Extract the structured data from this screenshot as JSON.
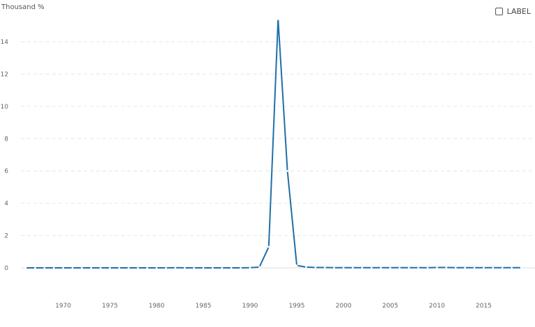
{
  "controls": {
    "label_toggle": "LABEL"
  },
  "chart_data": {
    "type": "line",
    "title": "",
    "xlabel": "",
    "ylabel": "Thousand %",
    "xlim": [
      1966,
      2019
    ],
    "ylim": [
      -1.5,
      15.6
    ],
    "y_ticks": [
      0,
      2,
      4,
      6,
      8,
      10,
      12,
      14
    ],
    "x_ticks": [
      1970,
      1975,
      1980,
      1985,
      1990,
      1995,
      2000,
      2005,
      2010,
      2015
    ],
    "grid": true,
    "color": "#1f6fa8",
    "series": [
      {
        "x": [
          1966,
          1967,
          1968,
          1969,
          1970,
          1971,
          1972,
          1973,
          1974,
          1975,
          1976,
          1977,
          1978,
          1979,
          1980,
          1981,
          1982,
          1983,
          1984,
          1985,
          1986,
          1987,
          1988,
          1989,
          1990,
          1991,
          1992,
          1993,
          1994,
          1995,
          1996,
          1997,
          1998,
          1999,
          2000,
          2001,
          2002,
          2003,
          2004,
          2005,
          2006,
          2007,
          2008,
          2009,
          2010,
          2011,
          2012,
          2013,
          2014,
          2015,
          2016,
          2017,
          2018,
          2019
        ],
        "y": [
          0.0,
          0.0,
          0.0,
          0.0,
          0.0,
          0.0,
          0.0,
          0.0,
          0.0,
          0.0,
          0.0,
          0.0,
          0.0,
          0.0,
          0.0,
          0.0,
          0.01,
          0.0,
          0.0,
          0.0,
          0.0,
          0.0,
          0.0,
          0.0,
          0.01,
          0.05,
          1.3,
          15.4,
          6.0,
          0.15,
          0.05,
          0.02,
          0.02,
          0.01,
          0.01,
          0.01,
          0.01,
          0.01,
          0.01,
          0.01,
          0.01,
          0.01,
          0.01,
          0.01,
          0.02,
          0.02,
          0.01,
          0.01,
          0.01,
          0.01,
          0.01,
          0.01,
          0.01,
          0.01
        ]
      }
    ]
  }
}
